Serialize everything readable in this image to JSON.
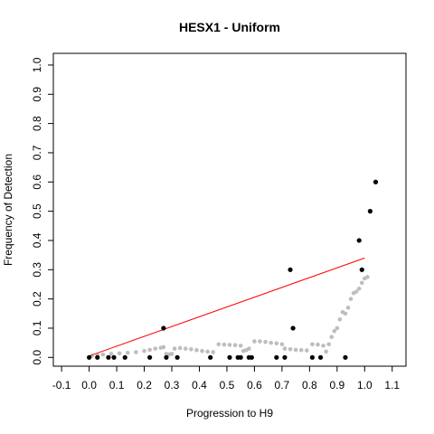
{
  "chart_data": {
    "type": "scatter",
    "title": "HESX1 - Uniform",
    "xlabel": "Progression to H9",
    "ylabel": "Frequency of Detection",
    "xlim": [
      -0.13,
      1.15
    ],
    "ylim": [
      -0.03,
      1.04
    ],
    "xticks": [
      -0.1,
      0.0,
      0.1,
      0.2,
      0.3,
      0.4,
      0.5,
      0.6,
      0.7,
      0.8,
      0.9,
      1.0,
      1.1
    ],
    "xtick_labels": [
      "-0.1",
      "0.0",
      "0.1",
      "0.2",
      "0.3",
      "0.4",
      "0.5",
      "0.6",
      "0.7",
      "0.8",
      "0.9",
      "1.0",
      "1.1"
    ],
    "yticks": [
      0.0,
      0.1,
      0.2,
      0.3,
      0.4,
      0.5,
      0.6,
      0.7,
      0.8,
      0.9,
      1.0
    ],
    "ytick_labels": [
      "0.0",
      "0.1",
      "0.2",
      "0.3",
      "0.4",
      "0.5",
      "0.6",
      "0.7",
      "0.8",
      "0.9",
      "1.0"
    ],
    "grid": false,
    "colors": {
      "observed": "#000000",
      "smoothed": "#bebebe",
      "fit": "#ff0000"
    },
    "series": [
      {
        "kind": "points",
        "points": [
          [
            0.0,
            0.0
          ],
          [
            0.03,
            0.0
          ],
          [
            0.07,
            0.0
          ],
          [
            0.09,
            0.0
          ],
          [
            0.13,
            0.0
          ],
          [
            0.22,
            0.0
          ],
          [
            0.27,
            0.1
          ],
          [
            0.28,
            0.0
          ],
          [
            0.32,
            0.0
          ],
          [
            0.44,
            0.0
          ],
          [
            0.51,
            0.0
          ],
          [
            0.54,
            0.0
          ],
          [
            0.55,
            0.0
          ],
          [
            0.58,
            0.0
          ],
          [
            0.59,
            0.0
          ],
          [
            0.68,
            0.0
          ],
          [
            0.71,
            0.0
          ],
          [
            0.73,
            0.3
          ],
          [
            0.74,
            0.1
          ],
          [
            0.81,
            0.0
          ],
          [
            0.84,
            0.0
          ],
          [
            0.93,
            0.0
          ],
          [
            0.98,
            0.4
          ],
          [
            0.99,
            0.3
          ],
          [
            1.02,
            0.5
          ],
          [
            1.04,
            0.6
          ]
        ]
      },
      {
        "kind": "smoothed",
        "points": [
          [
            0.01,
            0.005
          ],
          [
            0.03,
            0.008
          ],
          [
            0.05,
            0.01
          ],
          [
            0.08,
            0.012
          ],
          [
            0.11,
            0.014
          ],
          [
            0.14,
            0.016
          ],
          [
            0.17,
            0.018
          ],
          [
            0.2,
            0.022
          ],
          [
            0.22,
            0.026
          ],
          [
            0.24,
            0.03
          ],
          [
            0.26,
            0.033
          ],
          [
            0.27,
            0.035
          ],
          [
            0.28,
            0.012
          ],
          [
            0.29,
            0.01
          ],
          [
            0.3,
            0.012
          ],
          [
            0.31,
            0.03
          ],
          [
            0.33,
            0.032
          ],
          [
            0.35,
            0.03
          ],
          [
            0.37,
            0.028
          ],
          [
            0.39,
            0.025
          ],
          [
            0.41,
            0.022
          ],
          [
            0.43,
            0.02
          ],
          [
            0.45,
            0.018
          ],
          [
            0.47,
            0.045
          ],
          [
            0.49,
            0.044
          ],
          [
            0.51,
            0.043
          ],
          [
            0.53,
            0.042
          ],
          [
            0.55,
            0.04
          ],
          [
            0.56,
            0.022
          ],
          [
            0.57,
            0.025
          ],
          [
            0.58,
            0.03
          ],
          [
            0.6,
            0.055
          ],
          [
            0.62,
            0.055
          ],
          [
            0.64,
            0.053
          ],
          [
            0.66,
            0.05
          ],
          [
            0.68,
            0.048
          ],
          [
            0.7,
            0.045
          ],
          [
            0.71,
            0.03
          ],
          [
            0.73,
            0.028
          ],
          [
            0.75,
            0.026
          ],
          [
            0.77,
            0.025
          ],
          [
            0.79,
            0.024
          ],
          [
            0.81,
            0.045
          ],
          [
            0.83,
            0.044
          ],
          [
            0.85,
            0.04
          ],
          [
            0.86,
            0.02
          ],
          [
            0.87,
            0.045
          ],
          [
            0.88,
            0.07
          ],
          [
            0.89,
            0.09
          ],
          [
            0.9,
            0.1
          ],
          [
            0.91,
            0.13
          ],
          [
            0.92,
            0.155
          ],
          [
            0.93,
            0.15
          ],
          [
            0.94,
            0.17
          ],
          [
            0.95,
            0.2
          ],
          [
            0.96,
            0.22
          ],
          [
            0.97,
            0.225
          ],
          [
            0.98,
            0.235
          ],
          [
            0.99,
            0.255
          ],
          [
            1.0,
            0.27
          ],
          [
            1.01,
            0.275
          ]
        ]
      },
      {
        "kind": "fit-line",
        "points": [
          [
            0.0,
            0.005
          ],
          [
            1.0,
            0.34
          ]
        ]
      }
    ]
  }
}
